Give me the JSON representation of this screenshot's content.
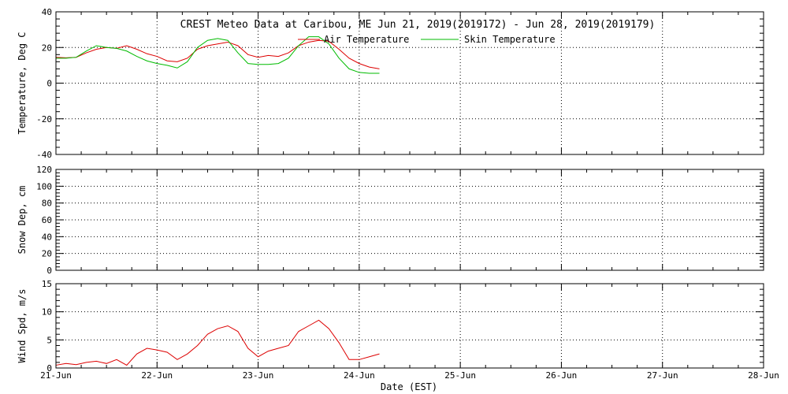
{
  "title": "CREST Meteo Data at Caribou, ME   Jun 21, 2019(2019172) - Jun 28, 2019(2019179)",
  "x_axis_label": "Date (EST)",
  "x_tick_labels": [
    "21-Jun",
    "22-Jun",
    "23-Jun",
    "24-Jun",
    "25-Jun",
    "26-Jun",
    "27-Jun",
    "28-Jun"
  ],
  "colors": {
    "air": "#dd0000",
    "skin": "#00bb00",
    "wind": "#dd0000"
  },
  "chart_data": [
    {
      "type": "line",
      "ylabel": "Temperature, Deg C",
      "x_unit": "days since 21-Jun 00:00",
      "xlim": [
        0,
        7
      ],
      "ylim": [
        -40,
        40
      ],
      "yticks": [
        -40,
        -20,
        0,
        20,
        40
      ],
      "legend_position": "top",
      "series": [
        {
          "name": "Air Temperature",
          "color": "#dd0000",
          "x": [
            0,
            0.1,
            0.2,
            0.3,
            0.4,
            0.5,
            0.6,
            0.7,
            0.8,
            0.9,
            1.0,
            1.1,
            1.2,
            1.3,
            1.4,
            1.5,
            1.6,
            1.7,
            1.8,
            1.9,
            2.0,
            2.1,
            2.2,
            2.3,
            2.4,
            2.5,
            2.6,
            2.7,
            2.8,
            2.9,
            3.0,
            3.1,
            3.2
          ],
          "values": [
            14.5,
            14.2,
            14.5,
            17.0,
            19.0,
            20.0,
            19.5,
            21.0,
            19.0,
            16.5,
            15.0,
            12.5,
            12.0,
            14.0,
            19.0,
            21.0,
            22.0,
            23.0,
            21.0,
            16.0,
            14.5,
            15.5,
            15.0,
            17.0,
            21.0,
            23.0,
            24.0,
            23.5,
            19.0,
            14.0,
            11.0,
            9.0,
            8.0
          ]
        },
        {
          "name": "Skin Temperature",
          "color": "#00bb00",
          "x": [
            0,
            0.1,
            0.2,
            0.3,
            0.4,
            0.5,
            0.6,
            0.7,
            0.8,
            0.9,
            1.0,
            1.1,
            1.2,
            1.3,
            1.4,
            1.5,
            1.6,
            1.7,
            1.8,
            1.9,
            2.0,
            2.1,
            2.2,
            2.3,
            2.4,
            2.5,
            2.6,
            2.7,
            2.8,
            2.9,
            3.0,
            3.1,
            3.2
          ],
          "values": [
            14.0,
            14.0,
            14.5,
            18.0,
            21.0,
            20.0,
            19.5,
            18.0,
            15.0,
            12.5,
            11.0,
            10.0,
            8.5,
            12.0,
            20.0,
            24.0,
            25.0,
            24.0,
            17.0,
            11.0,
            10.5,
            10.5,
            11.0,
            14.0,
            21.0,
            26.0,
            26.0,
            22.0,
            14.0,
            8.0,
            6.0,
            5.5,
            5.5
          ]
        }
      ]
    },
    {
      "type": "line",
      "ylabel": "Snow Dep, cm",
      "xlim": [
        0,
        7
      ],
      "ylim": [
        0,
        120
      ],
      "yticks": [
        0,
        20,
        40,
        60,
        80,
        100,
        120
      ],
      "series": []
    },
    {
      "type": "line",
      "ylabel": "Wind Spd, m/s",
      "x_unit": "days since 21-Jun 00:00",
      "xlim": [
        0,
        7
      ],
      "ylim": [
        0,
        15
      ],
      "yticks": [
        0,
        5,
        10,
        15
      ],
      "series": [
        {
          "name": "Wind Speed",
          "color": "#dd0000",
          "x": [
            0,
            0.1,
            0.2,
            0.3,
            0.4,
            0.5,
            0.6,
            0.7,
            0.8,
            0.9,
            1.0,
            1.1,
            1.2,
            1.3,
            1.4,
            1.5,
            1.6,
            1.7,
            1.8,
            1.9,
            2.0,
            2.1,
            2.2,
            2.3,
            2.4,
            2.5,
            2.6,
            2.7,
            2.8,
            2.9,
            3.0,
            3.1,
            3.2
          ],
          "values": [
            0.5,
            0.8,
            0.6,
            1.0,
            1.2,
            0.8,
            1.5,
            0.5,
            2.5,
            3.5,
            3.2,
            2.8,
            1.5,
            2.5,
            4.0,
            6.0,
            7.0,
            7.5,
            6.5,
            3.5,
            2.0,
            3.0,
            3.5,
            4.0,
            6.5,
            7.5,
            8.5,
            7.0,
            4.5,
            1.5,
            1.5,
            2.0,
            2.5
          ]
        }
      ]
    }
  ]
}
